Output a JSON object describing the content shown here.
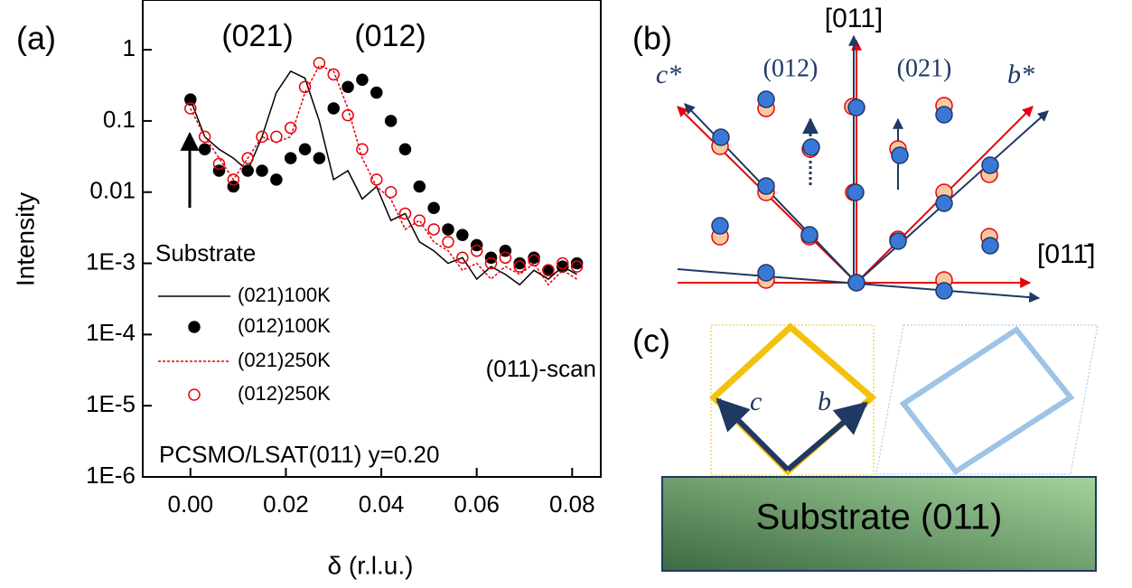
{
  "chart_data": {
    "type": "line",
    "panel_label": "(a)",
    "x_label": "δ (r.l.u.)",
    "y_label": "Intensity",
    "annotations": [
      "(021)",
      "(012)",
      "Substrate",
      "(011)-scan",
      "PCSMO/LSAT(011) y=0.20"
    ],
    "xlim": [
      -0.01,
      0.086
    ],
    "ylim": [
      1e-06,
      5
    ],
    "log_y": true,
    "legend": "lower left",
    "xticks": [
      {
        "value": 0,
        "label": "0.00"
      },
      0.02,
      0.04,
      0.06,
      0.08
    ],
    "yticks": [
      {
        "value": 1e-06,
        "label": "1E-6"
      },
      {
        "value": 1e-05,
        "label": "1E-5"
      },
      {
        "value": 0.0001,
        "label": "1E-4"
      },
      {
        "value": 0.001,
        "label": "1E-3"
      },
      0.01,
      0.1,
      1
    ],
    "x": [
      0,
      0.003,
      0.006,
      0.009,
      0.012,
      0.015,
      0.018,
      0.021,
      0.024,
      0.027,
      0.03,
      0.033,
      0.036,
      0.039,
      0.042,
      0.045,
      0.048,
      0.051,
      0.054,
      0.057,
      0.06,
      0.063,
      0.066,
      0.069,
      0.072,
      0.075,
      0.078,
      0.081
    ],
    "series": [
      {
        "name": "(021)100K",
        "color": "#000000",
        "mode": "line",
        "dashed": false,
        "values": [
          0.2,
          0.06,
          0.04,
          0.03,
          0.02,
          0.06,
          0.25,
          0.5,
          0.4,
          0.1,
          0.015,
          0.02,
          0.008,
          0.012,
          0.004,
          0.005,
          0.002,
          0.0015,
          0.001,
          0.0012,
          0.0006,
          0.0009,
          0.0007,
          0.0005,
          0.0008,
          0.0006,
          0.0009,
          0.0007
        ]
      },
      {
        "name": "(012)100K",
        "color": "#000000",
        "mode": "markers",
        "filled": true,
        "values": [
          0.2,
          0.04,
          0.02,
          0.012,
          0.02,
          0.02,
          0.015,
          0.03,
          0.04,
          0.03,
          0.15,
          0.3,
          0.38,
          0.25,
          0.1,
          0.04,
          0.012,
          0.006,
          0.003,
          0.0025,
          0.0018,
          0.0012,
          0.0015,
          0.001,
          0.0012,
          0.0008,
          0.0009,
          0.001
        ]
      },
      {
        "name": "(021)250K",
        "color": "#e8000b",
        "mode": "line",
        "dashed": true,
        "values": [
          0.15,
          0.06,
          0.03,
          0.015,
          0.03,
          0.06,
          0.05,
          0.06,
          0.25,
          0.6,
          0.5,
          0.15,
          0.03,
          0.012,
          0.008,
          0.003,
          0.004,
          0.002,
          0.0015,
          0.0008,
          0.001,
          0.0006,
          0.0009,
          0.0007,
          0.001,
          0.0005,
          0.0008,
          0.0006
        ]
      },
      {
        "name": "(012)250K",
        "color": "#e8000b",
        "mode": "markers",
        "filled": false,
        "values": [
          0.15,
          0.06,
          0.025,
          0.015,
          0.03,
          0.06,
          0.06,
          0.08,
          0.3,
          0.65,
          0.45,
          0.12,
          0.04,
          0.015,
          0.01,
          0.005,
          0.004,
          0.003,
          0.002,
          0.0012,
          0.0015,
          0.001,
          0.0012,
          0.0009,
          0.0011,
          0.0008,
          0.001,
          0.0009
        ]
      }
    ]
  },
  "panel_b": {
    "label": "(b)",
    "axis_up": "[011]",
    "axis_right": "[011̄]",
    "c_star": "c*",
    "b_star": "b*",
    "peak_left": "(012)",
    "peak_right": "(021)"
  },
  "panel_c": {
    "label": "(c)",
    "c": "c",
    "b": "b",
    "substrate": "Substrate (011)"
  }
}
